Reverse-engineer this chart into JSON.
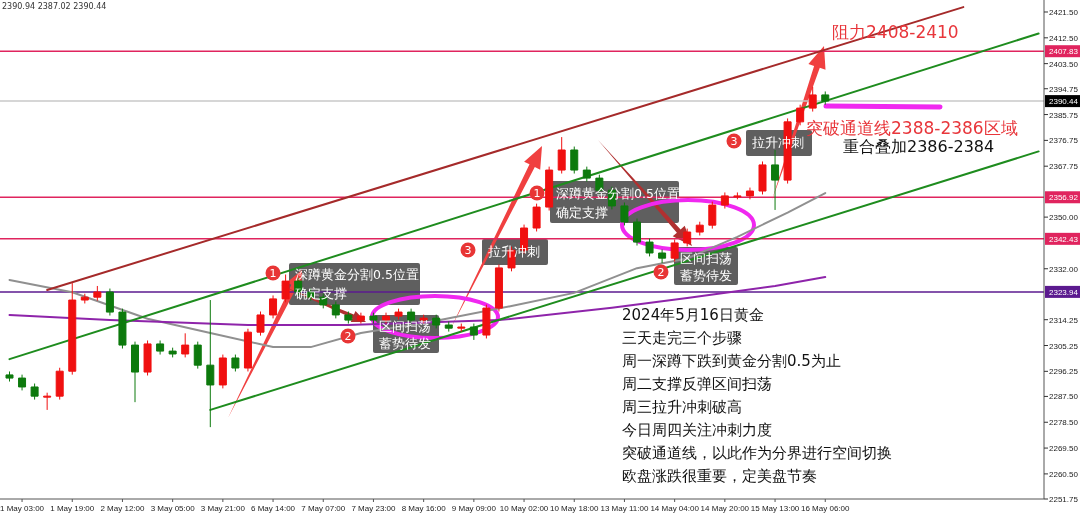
{
  "chart_data": {
    "type": "candlestick",
    "categories": [
      null,
      "1 May 03:00",
      null,
      null,
      null,
      "1 May 19:00",
      null,
      null,
      null,
      "2 May 12:00",
      null,
      null,
      null,
      "3 May 05:00",
      null,
      null,
      null,
      "3 May 21:00",
      null,
      null,
      null,
      "6 May 14:00",
      null,
      null,
      null,
      "7 May 07:00",
      null,
      null,
      null,
      "7 May 23:00",
      null,
      null,
      null,
      "8 May 16:00",
      null,
      null,
      null,
      "9 May 09:00",
      null,
      null,
      null,
      "10 May 02:00",
      null,
      null,
      null,
      "10 May 18:00",
      null,
      null,
      null,
      "13 May 11:00",
      null,
      null,
      null,
      "14 May 04:00",
      null,
      null,
      null,
      "14 May 20:00",
      null,
      null,
      null,
      "15 May 13:00",
      null,
      null,
      null,
      "16 May 06:00",
      null,
      null,
      null,
      null,
      null,
      null,
      null,
      null,
      null,
      null,
      null,
      null,
      null,
      null,
      null,
      null,
      null
    ],
    "ohlc": [
      [
        2295.0,
        2296.2,
        2292.7,
        2293.9
      ],
      [
        2293.9,
        2295.1,
        2289.6,
        2290.8
      ],
      [
        2290.8,
        2292.0,
        2286.4,
        2287.6
      ],
      [
        2287.6,
        2288.8,
        2282.8,
        2287.6
      ],
      [
        2287.6,
        2297.5,
        2286.4,
        2296.3
      ],
      [
        2296.3,
        2327.0,
        2295.1,
        2321.1
      ],
      [
        2321.1,
        2323.3,
        2319.9,
        2322.1
      ],
      [
        2322.1,
        2326.0,
        2320.9,
        2323.9
      ],
      [
        2323.9,
        2325.1,
        2315.7,
        2316.9
      ],
      [
        2316.9,
        2318.1,
        2304.2,
        2305.4
      ],
      [
        2305.4,
        2306.6,
        2285.5,
        2296.0
      ],
      [
        2296.0,
        2307.0,
        2294.8,
        2305.8
      ],
      [
        2305.8,
        2307.0,
        2302.1,
        2303.3
      ],
      [
        2303.3,
        2304.5,
        2301.1,
        2302.3
      ],
      [
        2302.3,
        2309.5,
        2301.1,
        2305.4
      ],
      [
        2305.4,
        2306.6,
        2297.2,
        2298.4
      ],
      [
        2298.4,
        2321.1,
        2276.8,
        2291.5
      ],
      [
        2291.5,
        2302.1,
        2290.3,
        2300.9
      ],
      [
        2300.9,
        2302.1,
        2296.2,
        2297.4
      ],
      [
        2297.4,
        2311.1,
        2296.2,
        2309.9
      ],
      [
        2309.9,
        2317.1,
        2308.7,
        2315.9
      ],
      [
        2315.9,
        2322.7,
        2314.7,
        2321.5
      ],
      [
        2321.5,
        2330.0,
        2320.3,
        2327.7
      ],
      [
        2327.7,
        2328.9,
        2322.7,
        2323.9
      ],
      [
        2323.9,
        2325.1,
        2320.9,
        2322.1
      ],
      [
        2322.1,
        2323.3,
        2318.2,
        2319.4
      ],
      [
        2319.4,
        2320.6,
        2314.7,
        2315.9
      ],
      [
        2315.9,
        2317.1,
        2312.9,
        2314.1
      ],
      [
        2314.1,
        2316.7,
        2312.9,
        2315.5
      ],
      [
        2315.5,
        2316.7,
        2312.9,
        2314.1
      ],
      [
        2314.1,
        2316.7,
        2312.9,
        2315.5
      ],
      [
        2315.5,
        2318.1,
        2314.3,
        2316.9
      ],
      [
        2316.9,
        2318.1,
        2312.9,
        2314.1
      ],
      [
        2314.1,
        2316.0,
        2312.9,
        2314.8
      ],
      [
        2314.8,
        2316.0,
        2311.2,
        2312.4
      ],
      [
        2312.4,
        2313.6,
        2310.1,
        2311.3
      ],
      [
        2311.3,
        2312.9,
        2310.1,
        2311.7
      ],
      [
        2311.7,
        2312.9,
        2307.2,
        2308.9
      ],
      [
        2308.9,
        2319.5,
        2307.7,
        2318.3
      ],
      [
        2318.3,
        2333.5,
        2317.1,
        2332.3
      ],
      [
        2332.3,
        2339.7,
        2331.1,
        2338.5
      ],
      [
        2338.5,
        2347.4,
        2337.3,
        2346.2
      ],
      [
        2346.2,
        2354.7,
        2345.0,
        2353.5
      ],
      [
        2353.5,
        2367.6,
        2352.3,
        2366.4
      ],
      [
        2366.4,
        2377.9,
        2365.2,
        2373.4
      ],
      [
        2373.4,
        2374.6,
        2365.2,
        2366.4
      ],
      [
        2366.4,
        2367.6,
        2362.4,
        2363.6
      ],
      [
        2363.6,
        2364.8,
        2358.2,
        2359.4
      ],
      [
        2359.4,
        2360.6,
        2352.7,
        2353.9
      ],
      [
        2353.9,
        2355.1,
        2347.1,
        2348.3
      ],
      [
        2348.3,
        2349.5,
        2340.1,
        2341.3
      ],
      [
        2341.3,
        2342.5,
        2336.3,
        2337.5
      ],
      [
        2337.5,
        2338.7,
        2334.0,
        2335.7
      ],
      [
        2335.7,
        2342.2,
        2334.5,
        2341.0
      ],
      [
        2341.0,
        2346.0,
        2339.8,
        2344.8
      ],
      [
        2344.8,
        2348.4,
        2343.6,
        2347.2
      ],
      [
        2347.2,
        2355.4,
        2346.0,
        2354.2
      ],
      [
        2354.2,
        2358.6,
        2353.0,
        2357.4
      ],
      [
        2357.4,
        2358.6,
        2356.2,
        2357.4
      ],
      [
        2357.4,
        2360.3,
        2356.2,
        2359.1
      ],
      [
        2359.1,
        2369.4,
        2357.9,
        2368.2
      ],
      [
        2368.2,
        2373.4,
        2352.5,
        2362.9
      ],
      [
        2362.9,
        2384.4,
        2361.7,
        2383.2
      ],
      [
        2383.2,
        2389.2,
        2382.0,
        2388.0
      ],
      [
        2388.0,
        2395.4,
        2386.8,
        2392.6
      ],
      [
        2392.6,
        2393.8,
        2389.2,
        2390.44
      ],
      null,
      null,
      null,
      null,
      null,
      null,
      null,
      null,
      null,
      null,
      null,
      null,
      null,
      null,
      null,
      null,
      null
    ],
    "series": [
      {
        "type": "line",
        "color": "#909090",
        "values": [
          2328.1,
          null,
          null,
          null,
          null,
          2323.8,
          null,
          null,
          null,
          null,
          null,
          2314.6,
          null,
          null,
          null,
          null,
          2309.6,
          null,
          null,
          null,
          null,
          2304.7,
          null,
          null,
          2304.7,
          null,
          null,
          null,
          2309.6,
          null,
          null,
          null,
          null,
          null,
          2313.9,
          null,
          null,
          null,
          null,
          null,
          2319.0,
          null,
          null,
          null,
          null,
          2323.6,
          null,
          null,
          null,
          null,
          2332.2,
          null,
          null,
          null,
          2335.6,
          null,
          null,
          null,
          2343.1,
          null,
          null,
          null,
          2351.6,
          null,
          null,
          2358.4,
          null,
          null,
          null,
          null,
          null,
          null,
          null,
          null,
          null,
          null,
          null,
          null,
          null,
          null,
          null,
          null,
          null
        ]
      },
      {
        "type": "line",
        "color": "#8e24aa",
        "values": [
          2315.9,
          null,
          null,
          null,
          null,
          null,
          null,
          null,
          2314.1,
          null,
          null,
          null,
          null,
          null,
          null,
          null,
          null,
          null,
          null,
          2312.4,
          null,
          null,
          null,
          null,
          null,
          null,
          null,
          2312.4,
          null,
          null,
          null,
          null,
          null,
          null,
          null,
          null,
          null,
          null,
          null,
          2314.1,
          null,
          null,
          null,
          null,
          null,
          null,
          null,
          null,
          2318.4,
          null,
          null,
          null,
          null,
          null,
          2321.8,
          null,
          null,
          null,
          null,
          null,
          null,
          2326.0,
          null,
          null,
          null,
          2329.1,
          null,
          null,
          null,
          null,
          null,
          null,
          null,
          null,
          null,
          null,
          null,
          null,
          null,
          null,
          null,
          null,
          null
        ]
      },
      {
        "type": "line",
        "color": "#a52a2a",
        "values": [
          null,
          null,
          null,
          2324.6,
          null,
          null,
          null,
          null,
          null,
          null,
          null,
          null,
          null,
          null,
          null,
          null,
          null,
          null,
          null,
          null,
          null,
          null,
          null,
          null,
          null,
          null,
          null,
          null,
          null,
          null,
          null,
          null,
          null,
          null,
          null,
          null,
          null,
          null,
          null,
          null,
          null,
          null,
          null,
          null,
          null,
          null,
          null,
          null,
          null,
          null,
          null,
          null,
          null,
          null,
          null,
          null,
          null,
          null,
          null,
          null,
          null,
          null,
          null,
          null,
          null,
          null,
          null,
          null,
          null,
          null,
          null,
          null,
          null,
          null,
          null,
          null,
          2423.2,
          null,
          null,
          null,
          null,
          null,
          null
        ]
      },
      {
        "type": "line",
        "color": "#1e8c1e",
        "values": [
          2300.5,
          null,
          null,
          null,
          null,
          null,
          null,
          null,
          null,
          null,
          null,
          null,
          null,
          null,
          null,
          null,
          null,
          null,
          null,
          null,
          null,
          null,
          null,
          null,
          null,
          null,
          null,
          null,
          null,
          null,
          null,
          null,
          null,
          null,
          null,
          null,
          null,
          null,
          null,
          null,
          null,
          null,
          null,
          null,
          null,
          null,
          null,
          null,
          null,
          null,
          null,
          null,
          null,
          null,
          null,
          null,
          null,
          null,
          null,
          null,
          null,
          null,
          null,
          null,
          null,
          null,
          null,
          null,
          null,
          null,
          null,
          null,
          null,
          null,
          null,
          null,
          null,
          null,
          null,
          null,
          null,
          null,
          2414.0
        ]
      },
      {
        "type": "line",
        "color": "#1e8c1e",
        "values": [
          null,
          null,
          null,
          null,
          null,
          null,
          null,
          null,
          null,
          null,
          null,
          null,
          null,
          null,
          null,
          null,
          2282.8,
          null,
          null,
          null,
          null,
          null,
          null,
          null,
          null,
          null,
          null,
          null,
          null,
          null,
          null,
          null,
          null,
          null,
          null,
          null,
          null,
          null,
          null,
          null,
          null,
          null,
          null,
          null,
          null,
          null,
          null,
          null,
          null,
          null,
          null,
          null,
          null,
          null,
          null,
          null,
          null,
          null,
          null,
          null,
          null,
          null,
          null,
          null,
          null,
          null,
          null,
          null,
          null,
          null,
          null,
          null,
          null,
          null,
          null,
          null,
          null,
          null,
          null,
          null,
          null,
          null,
          2372.9
        ]
      }
    ],
    "ylim": [
      2251.75,
      2425.68
    ],
    "yticks": [
      {
        "value": 2251.75,
        "label": "2251.75"
      },
      {
        "value": 2260.5,
        "label": "2260.50"
      },
      {
        "value": 2269.5,
        "label": "2269.50"
      },
      {
        "value": 2278.5,
        "label": "2278.50"
      },
      {
        "value": 2287.5,
        "label": "2287.50"
      },
      {
        "value": 2296.25,
        "label": "2296.25"
      },
      {
        "value": 2305.25,
        "label": "2305.25"
      },
      {
        "value": 2314.25,
        "label": "2314.25"
      },
      {
        "value": 2332,
        "label": "2332.00"
      },
      {
        "value": 2350,
        "label": "2350.00"
      },
      {
        "value": 2367.75,
        "label": "2367.75"
      },
      {
        "value": 2376.75,
        "label": "2376.75"
      },
      {
        "value": 2385.75,
        "label": "2385.75"
      },
      {
        "value": 2394.75,
        "label": "2394.75"
      },
      {
        "value": 2403.5,
        "label": "2403.50"
      },
      {
        "value": 2412.5,
        "label": "2412.50"
      },
      {
        "value": 2421.5,
        "label": "2421.50"
      }
    ],
    "ref_lines": [
      {
        "axis": "y",
        "value": 2407.83,
        "label": "2407.83",
        "color": "#e0245e"
      },
      {
        "axis": "y",
        "value": 2390.44,
        "label": "2390.44",
        "color": "#c8c8c8"
      },
      {
        "axis": "y",
        "value": 2356.92,
        "label": "2356.92",
        "color": "#e0245e"
      },
      {
        "axis": "y",
        "value": 2342.43,
        "label": "2342.43",
        "color": "#e0245e"
      },
      {
        "axis": "y",
        "value": 2323.94,
        "label": "2323.94",
        "color": "#5b1a8f"
      }
    ],
    "annotations": [
      "2390.94 2387.02 2390.44",
      "阻力2408-2410",
      "突破通道线2388-2386区域",
      "重合叠加2386-2384",
      "1",
      "深蹲黄金分割0.5位置",
      "确定支撑",
      "2",
      "区间扫荡",
      "蓄势待发",
      "3",
      "拉升冲刺",
      "1",
      "深蹲黄金分割0.5位置",
      "确定支撑",
      "2",
      "区间扫荡",
      "蓄势待发",
      "3",
      "拉升冲刺",
      "2024年5月16日黄金",
      "三天走完三个步骤",
      "周一深蹲下跌到黄金分割0.5为止",
      "周二支撑反弹区间扫荡",
      "周三拉升冲刺破高",
      "今日周四关注冲刺力度",
      "突破通道线，以此作为分界进行空间切换",
      "欧盘涨跌很重要，定美盘节奏"
    ]
  }
}
